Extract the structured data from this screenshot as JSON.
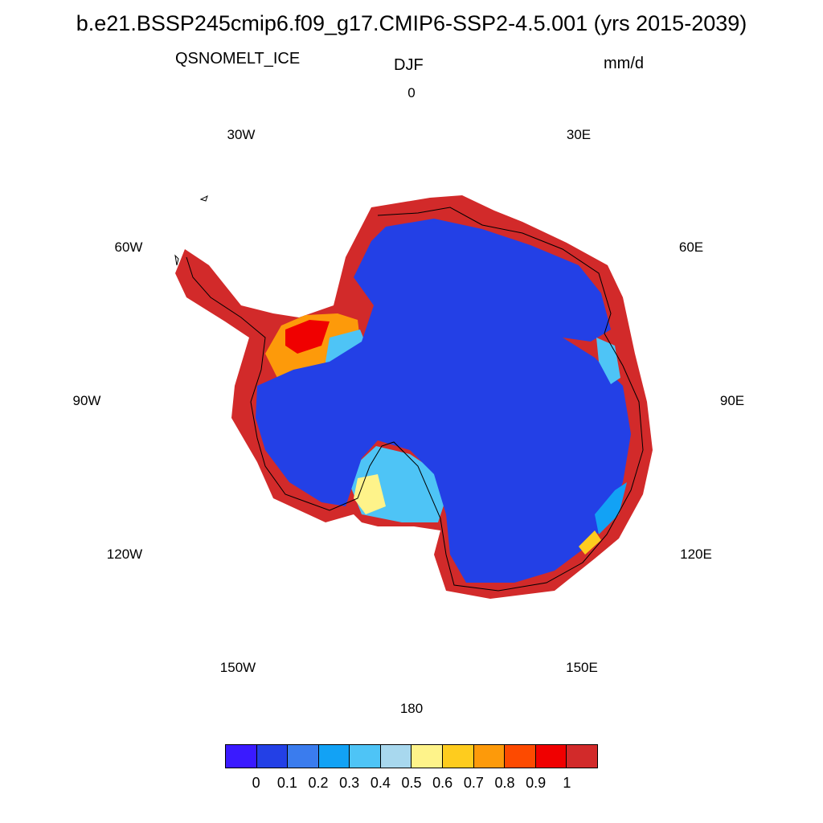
{
  "title": "b.e21.BSSP245cmip6.f09_g17.CMIP6-SSP2-4.5.001 (yrs 2015-2039)",
  "subtitle": {
    "variable": "QSNOMELT_ICE",
    "season": "DJF",
    "units": "mm/d"
  },
  "longitude_labels": [
    "0",
    "30E",
    "60E",
    "90E",
    "120E",
    "150E",
    "180",
    "150W",
    "120W",
    "90W",
    "60W",
    "30W"
  ],
  "colorbar": {
    "colors": [
      "#3a1aff",
      "#2340e6",
      "#3a7cee",
      "#12a2f5",
      "#4ec4f6",
      "#a8d8ee",
      "#fef38a",
      "#fecc1e",
      "#fd9a0a",
      "#fd4a00",
      "#f00000",
      "#d22a2a"
    ],
    "labels": [
      "0",
      "0.1",
      "0.2",
      "0.3",
      "0.4",
      "0.5",
      "0.6",
      "0.7",
      "0.8",
      "0.9",
      "1"
    ]
  },
  "chart_data": {
    "type": "heatmap",
    "title": "b.e21.BSSP245cmip6.f09_g17.CMIP6-SSP2-4.5.001 (yrs 2015-2039)",
    "variable": "QSNOMELT_ICE",
    "season": "DJF",
    "units": "mm/d",
    "projection": "south polar stereographic",
    "contour_levels": [
      0,
      0.1,
      0.2,
      0.3,
      0.4,
      0.5,
      0.6,
      0.7,
      0.8,
      0.9,
      1
    ],
    "interior_value_range": [
      0.1,
      0.2
    ],
    "coastal_margin_value": "> 1"
  }
}
